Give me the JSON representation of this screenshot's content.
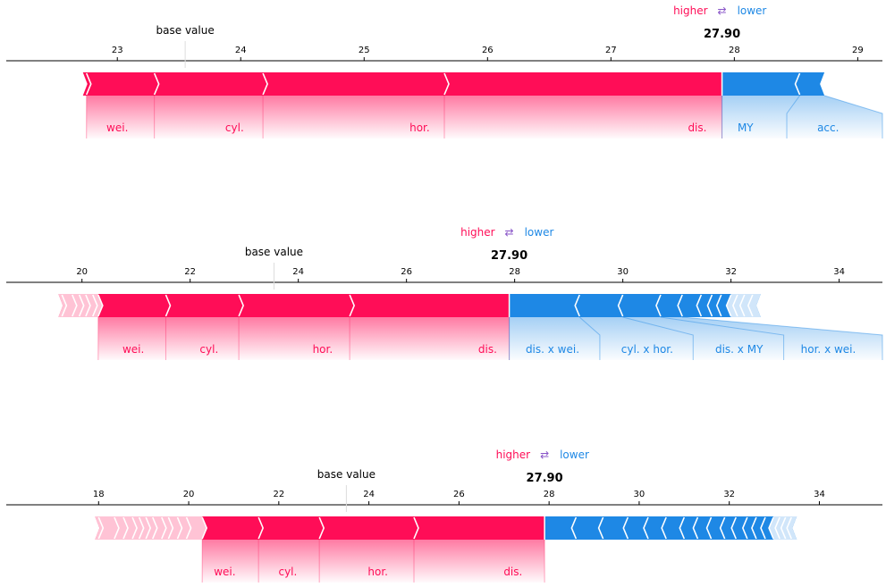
{
  "colors": {
    "pos": "#ff0d57",
    "neg": "#1e88e5",
    "pos_fill": "#ffc3d5",
    "neg_fill": "#d1e6fa"
  },
  "legend": {
    "higher": "higher",
    "arrow": "⇄",
    "lower": "lower"
  },
  "chart_data": [
    {
      "type": "force",
      "base_label": "base value",
      "output_value": "27.90",
      "output": 27.9,
      "base_value": 23.55,
      "xlim": [
        22.1,
        29.2
      ],
      "ticks": [
        23,
        24,
        25,
        26,
        27,
        28,
        29
      ],
      "pos_edges": [
        22.75,
        23.3,
        24.18,
        25.65
      ],
      "neg_edges": [
        28.53,
        28.73
      ],
      "pos_labels": [
        {
          "text": "wei.",
          "x": 23.0
        },
        {
          "text": "cyl.",
          "x": 23.95
        },
        {
          "text": "hor.",
          "x": 25.45
        },
        {
          "text": "dis.",
          "x": 27.7
        }
      ],
      "neg_labels": [
        {
          "text": "MY",
          "x": 28.09
        },
        {
          "text": "acc.",
          "x": 28.76
        }
      ]
    },
    {
      "type": "force",
      "base_label": "base value",
      "output_value": "27.90",
      "output": 27.9,
      "base_value": 23.55,
      "xlim": [
        18.6,
        34.8
      ],
      "ticks": [
        20,
        22,
        24,
        26,
        28,
        30,
        32,
        34
      ],
      "pos_edges": [
        19.63,
        19.82,
        19.95,
        20.07,
        20.2,
        20.3,
        21.55,
        22.9,
        24.95
      ],
      "neg_edges": [
        29.2,
        30.0,
        30.7,
        31.1,
        31.45,
        31.65,
        31.82,
        32.0,
        32.12,
        32.25,
        32.4,
        32.55
      ],
      "pos_labels": [
        {
          "text": "wei.",
          "x": 20.95
        },
        {
          "text": "cyl.",
          "x": 22.35
        },
        {
          "text": "hor.",
          "x": 24.45
        },
        {
          "text": "dis.",
          "x": 27.5
        }
      ],
      "neg_labels": [
        {
          "text": "dis. x wei.",
          "x": 28.7
        },
        {
          "text": "cyl. x hor.",
          "x": 30.45
        },
        {
          "text": "dis. x MY",
          "x": 32.15
        },
        {
          "text": "hor. x wei.",
          "x": 33.8
        }
      ]
    },
    {
      "type": "force",
      "base_label": "base value",
      "output_value": "27.90",
      "output": 27.9,
      "base_value": 23.5,
      "xlim": [
        15.95,
        35.4
      ],
      "ticks": [
        18,
        20,
        22,
        24,
        26,
        28,
        30,
        32,
        34
      ],
      "pos_edges": [
        18.0,
        18.35,
        18.55,
        18.75,
        18.9,
        19.05,
        19.2,
        19.4,
        19.55,
        19.75,
        19.95,
        20.3,
        21.55,
        22.9,
        25.0
      ],
      "neg_edges": [
        28.6,
        29.2,
        29.75,
        30.2,
        30.6,
        31.0,
        31.3,
        31.6,
        31.9,
        32.15,
        32.4,
        32.6,
        32.8,
        32.98,
        33.12,
        33.25,
        33.38,
        33.5
      ],
      "pos_labels": [
        {
          "text": "wei.",
          "x": 20.8
        },
        {
          "text": "cyl.",
          "x": 22.2
        },
        {
          "text": "hor.",
          "x": 24.2
        },
        {
          "text": "dis.",
          "x": 27.2
        }
      ],
      "neg_labels": []
    }
  ]
}
